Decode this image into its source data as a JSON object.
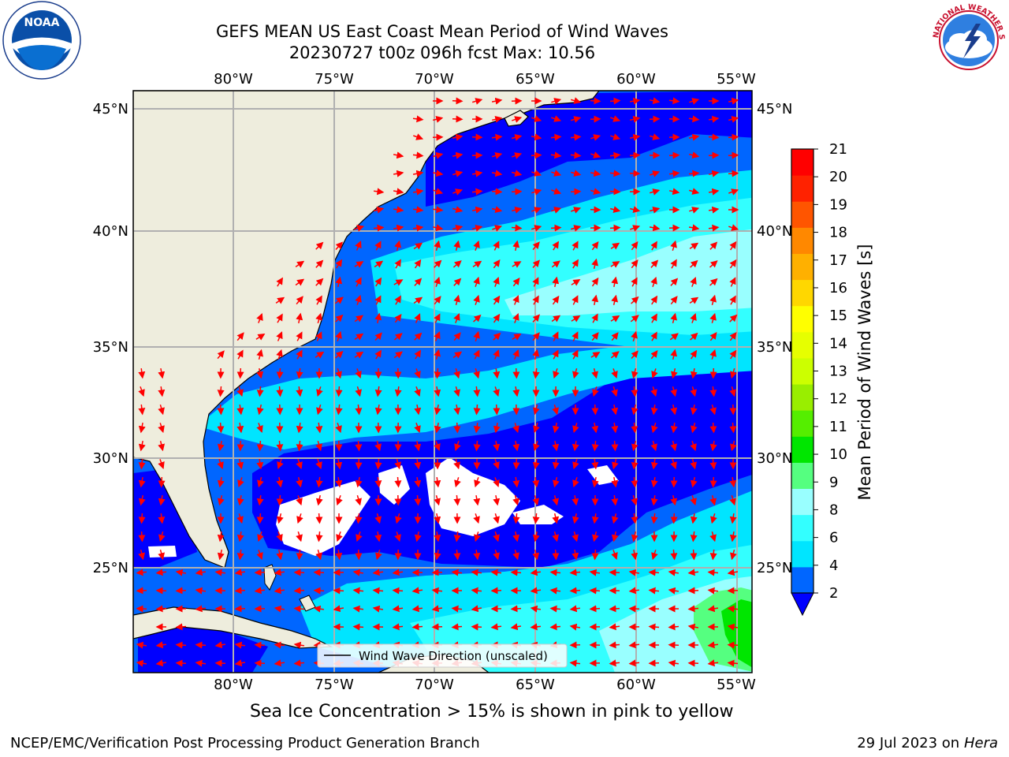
{
  "header": {
    "title_line_1": "GEFS MEAN US East Coast Mean Period of Wind Waves",
    "title_line_2": "20230727 t00z 096h fcst   Max: 10.56"
  },
  "logos": {
    "left": {
      "icon": "noaa-logo",
      "text": "NOAA"
    },
    "right": {
      "icon": "national-weather-service-logo",
      "text": "NATIONAL WEATHER SERVICE"
    }
  },
  "map": {
    "lon_ticks": [
      "80°W",
      "75°W",
      "70°W",
      "65°W",
      "60°W",
      "55°W"
    ],
    "lat_ticks": [
      "45°N",
      "40°N",
      "35°N",
      "30°N",
      "25°N"
    ],
    "gridlines": true,
    "legend": {
      "label": "Wind Wave Direction (unscaled)",
      "placement": "bottom-center"
    },
    "colors": {
      "land": "#eeeddd",
      "coastline": "#000000",
      "arrows": "#ff0000",
      "gridline": "#b0b0b0",
      "no_data": "#ffffff"
    }
  },
  "colorbar": {
    "label": "Mean Period of Wind Waves [s]",
    "tick_labels": [
      "2",
      "4",
      "6",
      "8",
      "9",
      "10",
      "11",
      "12",
      "13",
      "14",
      "15",
      "16",
      "17",
      "18",
      "19",
      "20",
      "21"
    ],
    "colors": [
      "#0066ff",
      "#00e5ff",
      "#33ffff",
      "#99ffff",
      "#55ff80",
      "#00e600",
      "#55ee00",
      "#99ee00",
      "#ccff00",
      "#e6ff00",
      "#ffff00",
      "#ffd700",
      "#ffb000",
      "#ff8800",
      "#ff5500",
      "#ff2200",
      "#ff0000"
    ],
    "extend_min_color": "#0000ff"
  },
  "notes": {
    "sea_ice": "Sea Ice Concentration > 15% is shown in pink to yellow"
  },
  "footer": {
    "left": "NCEP/EMC/Verification Post Processing Product Generation Branch",
    "right_date": "29 Jul 2023 on ",
    "right_host": "Hera"
  }
}
